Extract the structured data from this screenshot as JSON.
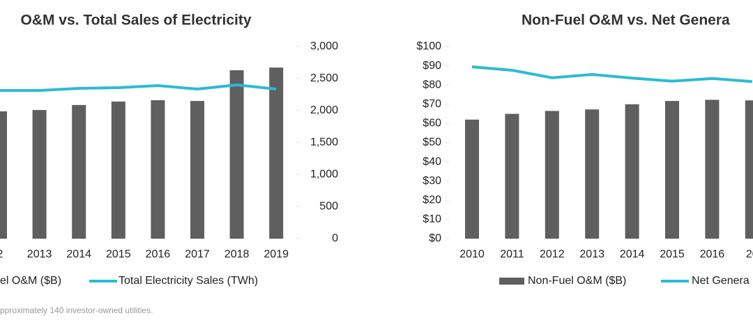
{
  "chart_data": [
    {
      "type": "bar",
      "title": "O&M vs. Total Sales of Electricity",
      "categories": [
        "2",
        "2013",
        "2014",
        "2015",
        "2016",
        "2017",
        "2018",
        "2019"
      ],
      "series": [
        {
          "name": "el O&M ($B)",
          "type": "bar",
          "color": "#5f5f5f",
          "values": [
            66.3,
            67,
            69.6,
            71.4,
            72.1,
            71.7,
            87.7,
            89.1
          ]
        },
        {
          "name": "Total Electricity Sales (TWh)",
          "type": "line",
          "color": "#2bbbd3",
          "axis": "y2",
          "values": [
            2315,
            2315,
            2348,
            2359,
            2391,
            2337,
            2402,
            2337
          ]
        }
      ],
      "ylim": [
        0,
        100
      ],
      "y2lim": [
        0,
        3000
      ],
      "y2ticks": [
        0,
        500,
        {
          "value": 1000,
          "label": "1,000"
        },
        {
          "value": 1500,
          "label": "1,500"
        },
        {
          "value": 2000,
          "label": "2,000"
        },
        {
          "value": 2500,
          "label": "2,500"
        },
        {
          "value": 3000,
          "label": "3,000"
        }
      ]
    },
    {
      "type": "bar",
      "title": "Non-Fuel O&M vs. Net Genera",
      "categories": [
        "2010",
        "2011",
        "2012",
        "2013",
        "2014",
        "2015",
        "2016",
        "20"
      ],
      "series": [
        {
          "name": "Non-Fuel O&M ($B)",
          "type": "bar",
          "color": "#5f5f5f",
          "values": [
            62,
            65,
            66.5,
            67.3,
            70,
            71.7,
            72.3,
            72
          ]
        },
        {
          "name": "Net Genera",
          "type": "line",
          "color": "#2bbbd3",
          "values": [
            89.5,
            87.7,
            83.8,
            85.5,
            83.6,
            82,
            83.4,
            81.8
          ]
        }
      ],
      "ylim": [
        0,
        100
      ],
      "yticks": [
        {
          "value": 0,
          "label": "$0"
        },
        {
          "value": 10,
          "label": "$10"
        },
        {
          "value": 20,
          "label": "$20"
        },
        {
          "value": 30,
          "label": "$30"
        },
        {
          "value": 40,
          "label": "$40"
        },
        {
          "value": 50,
          "label": "$50"
        },
        {
          "value": 60,
          "label": "$60"
        },
        {
          "value": 70,
          "label": "$70"
        },
        {
          "value": 80,
          "label": "$80"
        },
        {
          "value": 90,
          "label": "$90"
        },
        {
          "value": 100,
          "label": "$100"
        }
      ]
    }
  ],
  "footnote": "pproximately 140 investor-owned utilities."
}
